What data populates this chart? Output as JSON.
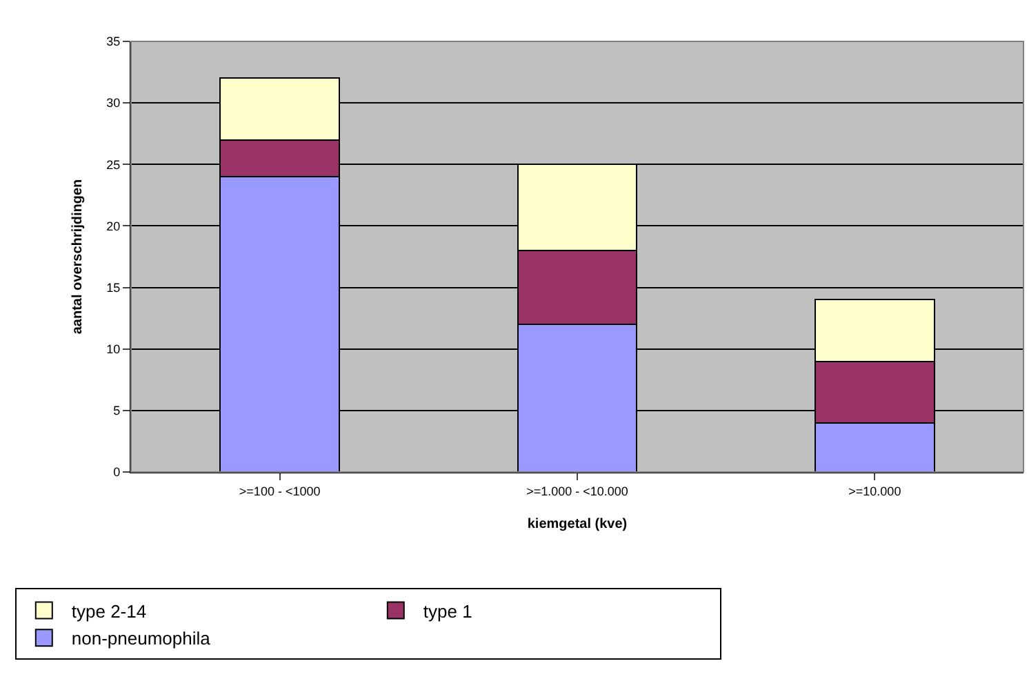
{
  "chart_data": {
    "type": "bar",
    "stacked": true,
    "xlabel": "kiemgetal (kve)",
    "ylabel": "aantal overschrijdingen",
    "categories": [
      ">=100 - <1000",
      ">=1.000 - <10.000",
      ">=10.000"
    ],
    "series": [
      {
        "name": "non-pneumophila",
        "color": "#9999ff",
        "values": [
          24,
          12,
          4
        ]
      },
      {
        "name": "type 1",
        "color": "#993366",
        "values": [
          3,
          6,
          5
        ]
      },
      {
        "name": "type 2-14",
        "color": "#ffffcc",
        "values": [
          5,
          7,
          5
        ]
      }
    ],
    "ylim": [
      0,
      35
    ],
    "yticks": [
      0,
      5,
      10,
      15,
      20,
      25,
      30,
      35
    ],
    "grid": "y",
    "legend": "bottom"
  }
}
